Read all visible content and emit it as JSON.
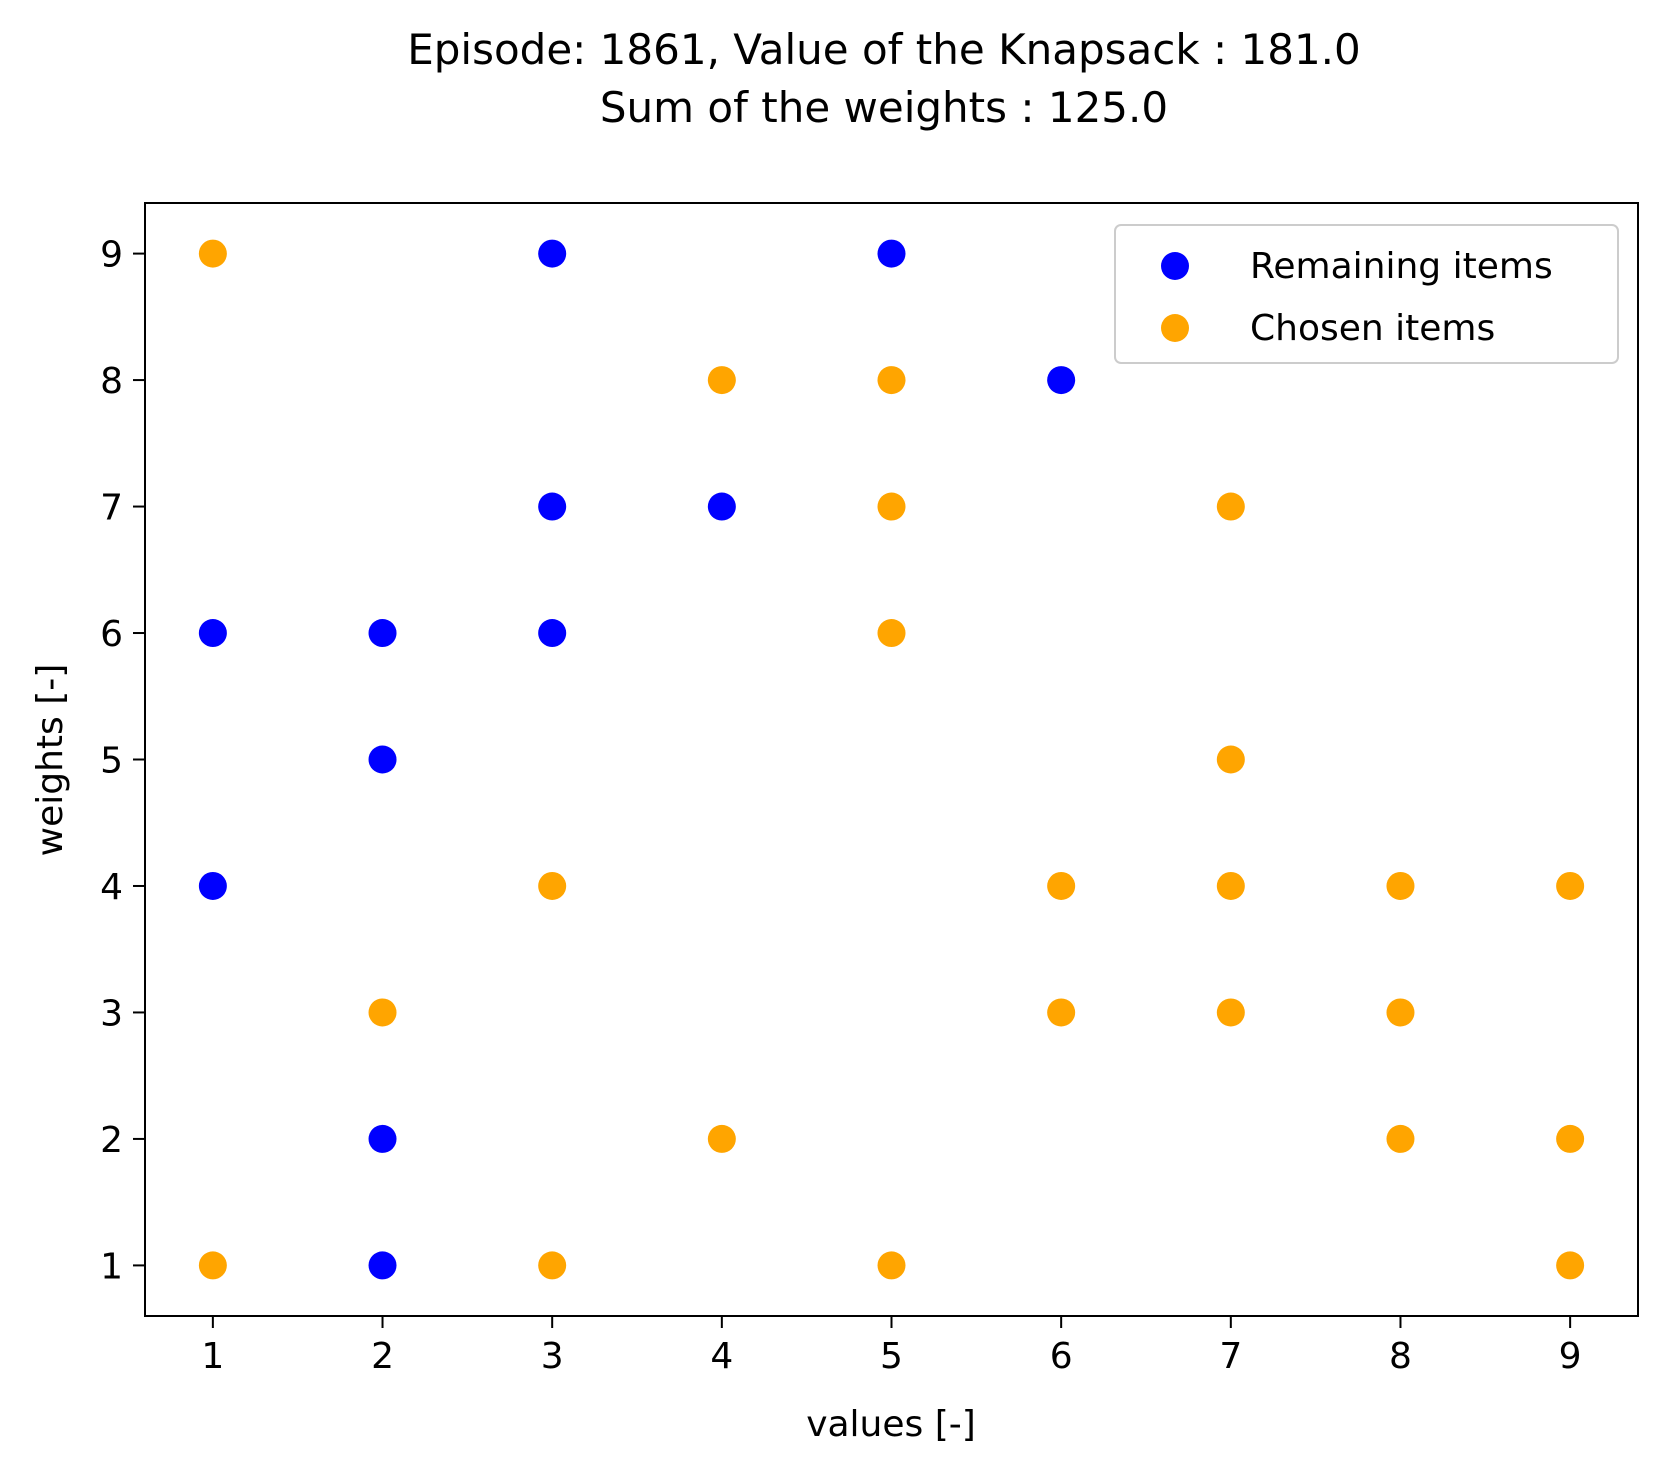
{
  "chart_data": {
    "type": "scatter",
    "title_lines": [
      "Episode: 1861, Value of the Knapsack : 181.0",
      "Sum of the weights : 125.0"
    ],
    "xlabel": "values [-]",
    "ylabel": "weights [-]",
    "xlim": [
      0.6,
      9.4
    ],
    "ylim": [
      0.6,
      9.4
    ],
    "xticks": [
      1,
      2,
      3,
      4,
      5,
      6,
      7,
      8,
      9
    ],
    "yticks": [
      1,
      2,
      3,
      4,
      5,
      6,
      7,
      8,
      9
    ],
    "grid": false,
    "legend_position": "top-right",
    "series": [
      {
        "name": "Remaining items",
        "color": "#0000ff",
        "points": [
          [
            1,
            6
          ],
          [
            1,
            4
          ],
          [
            2,
            6
          ],
          [
            2,
            5
          ],
          [
            2,
            2
          ],
          [
            2,
            1
          ],
          [
            3,
            9
          ],
          [
            3,
            7
          ],
          [
            3,
            6
          ],
          [
            4,
            7
          ],
          [
            5,
            9
          ],
          [
            6,
            8
          ]
        ]
      },
      {
        "name": "Chosen items",
        "color": "#ffa500",
        "points": [
          [
            1,
            9
          ],
          [
            1,
            1
          ],
          [
            2,
            3
          ],
          [
            3,
            4
          ],
          [
            3,
            1
          ],
          [
            4,
            8
          ],
          [
            4,
            2
          ],
          [
            5,
            8
          ],
          [
            5,
            7
          ],
          [
            5,
            6
          ],
          [
            5,
            1
          ],
          [
            6,
            4
          ],
          [
            6,
            3
          ],
          [
            7,
            7
          ],
          [
            7,
            5
          ],
          [
            7,
            4
          ],
          [
            7,
            3
          ],
          [
            8,
            4
          ],
          [
            8,
            3
          ],
          [
            8,
            2
          ],
          [
            9,
            4
          ],
          [
            9,
            2
          ],
          [
            9,
            1
          ]
        ]
      }
    ]
  }
}
